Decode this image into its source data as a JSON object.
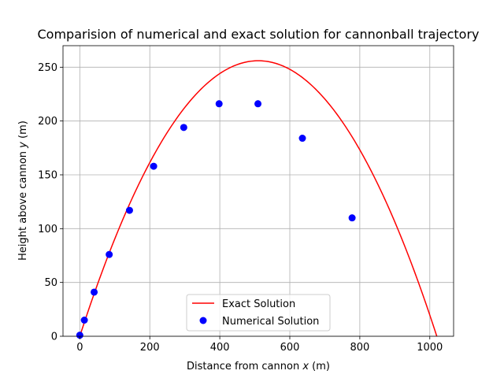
{
  "chart_data": {
    "type": "scatter",
    "title": "Comparision of numerical and exact solution for cannonball trajectory",
    "xlabel": "Distance from cannon ",
    "xlabel_var": "x",
    "xlabel_unit": " (m)",
    "ylabel": "Height above cannon ",
    "ylabel_var": "y",
    "ylabel_unit": " (m)",
    "xlim": [
      -48,
      1068
    ],
    "ylim": [
      0,
      270
    ],
    "xticks": [
      0,
      200,
      400,
      600,
      800,
      1000
    ],
    "yticks": [
      0,
      50,
      100,
      150,
      200,
      250
    ],
    "grid": true,
    "legend_position": "lower center",
    "series": [
      {
        "name": "Exact Solution",
        "kind": "line",
        "color": "#ff0000",
        "function": "parabola",
        "x_range": [
          0,
          1020
        ],
        "peak": [
          510,
          256
        ]
      },
      {
        "name": "Numerical Solution",
        "kind": "scatter",
        "color": "#0000ff",
        "x": [
          0,
          13,
          41,
          84,
          142,
          211,
          297,
          398,
          509,
          636,
          778
        ],
        "y": [
          1,
          15,
          41,
          76,
          117,
          158,
          194,
          216,
          216,
          184,
          110
        ]
      }
    ]
  }
}
